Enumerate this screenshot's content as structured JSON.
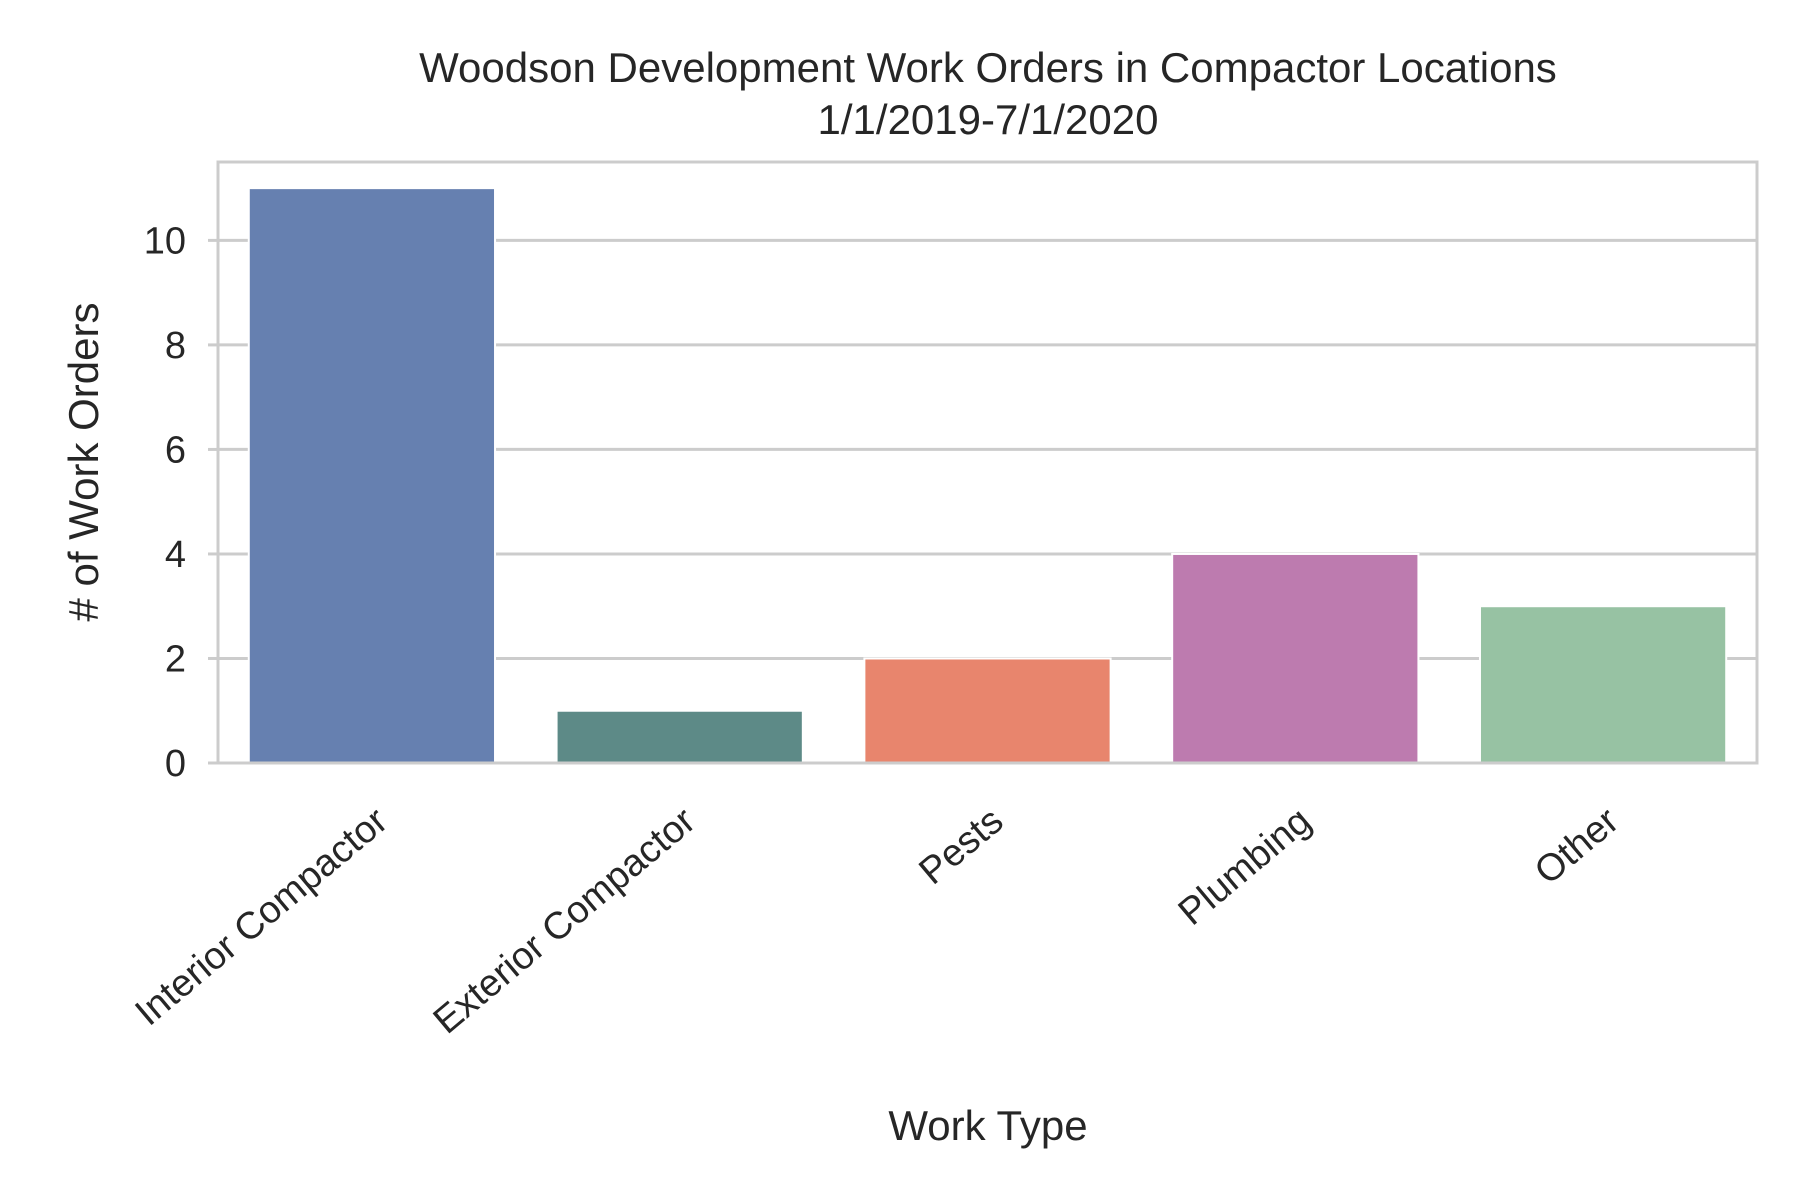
{
  "chart_data": {
    "type": "bar",
    "title": "Woodson Development Work Orders in Compactor Locations",
    "subtitle": "1/1/2019-7/1/2020",
    "xlabel": "Work Type",
    "ylabel": "# of Work Orders",
    "categories": [
      "Interior Compactor",
      "Exterior Compactor",
      "Pests",
      "Plumbing",
      "Other"
    ],
    "values": [
      11,
      1,
      2,
      4,
      3
    ],
    "colors": [
      "#6680b0",
      "#5d8a87",
      "#e8856d",
      "#bd7baf",
      "#97c2a3"
    ],
    "ylim": [
      0,
      11.5
    ],
    "yticks": [
      0,
      2,
      4,
      6,
      8,
      10
    ],
    "grid": true,
    "legend": "none"
  }
}
